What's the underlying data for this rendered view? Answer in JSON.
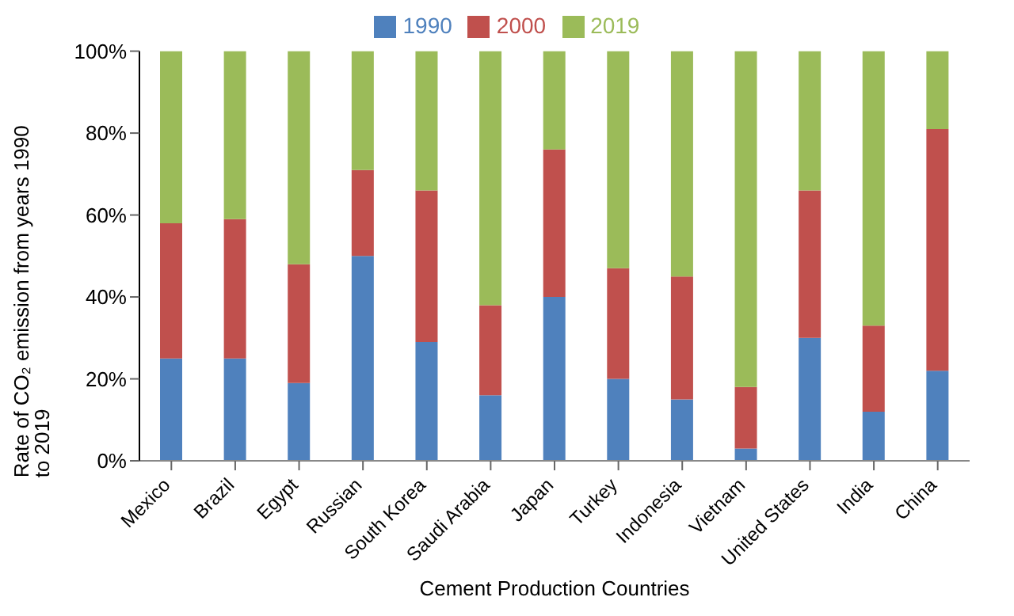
{
  "chart_data": {
    "type": "bar",
    "stacked": true,
    "xlabel": "Cement Production Countries",
    "ylabel": "Rate of CO₂ emission from years 1990 to 2019",
    "categories": [
      "Mexico",
      "Brazil",
      "Egypt",
      "Russian",
      "South Korea",
      "Saudi Arabia",
      "Japan",
      "Turkey",
      "Indonesia",
      "Vietnam",
      "United States",
      "India",
      "China"
    ],
    "series": [
      {
        "name": "1990",
        "color": "#4f81bd",
        "values": [
          25,
          25,
          19,
          50,
          29,
          16,
          40,
          20,
          15,
          3,
          30,
          12,
          22
        ]
      },
      {
        "name": "2000",
        "color": "#c0504d",
        "values": [
          33,
          34,
          29,
          21,
          37,
          22,
          36,
          27,
          30,
          15,
          36,
          21,
          59
        ]
      },
      {
        "name": "2019",
        "color": "#9bbb59",
        "values": [
          42,
          41,
          52,
          29,
          34,
          62,
          24,
          53,
          55,
          82,
          34,
          67,
          19
        ]
      }
    ],
    "ylim": [
      0,
      100
    ],
    "yticks": [
      {
        "value": 0,
        "label": "0%"
      },
      {
        "value": 20,
        "label": "20%"
      },
      {
        "value": 40,
        "label": "40%"
      },
      {
        "value": 60,
        "label": "60%"
      },
      {
        "value": 80,
        "label": "80%"
      },
      {
        "value": 100,
        "label": "100%"
      }
    ],
    "grid": false,
    "legend": "top"
  }
}
